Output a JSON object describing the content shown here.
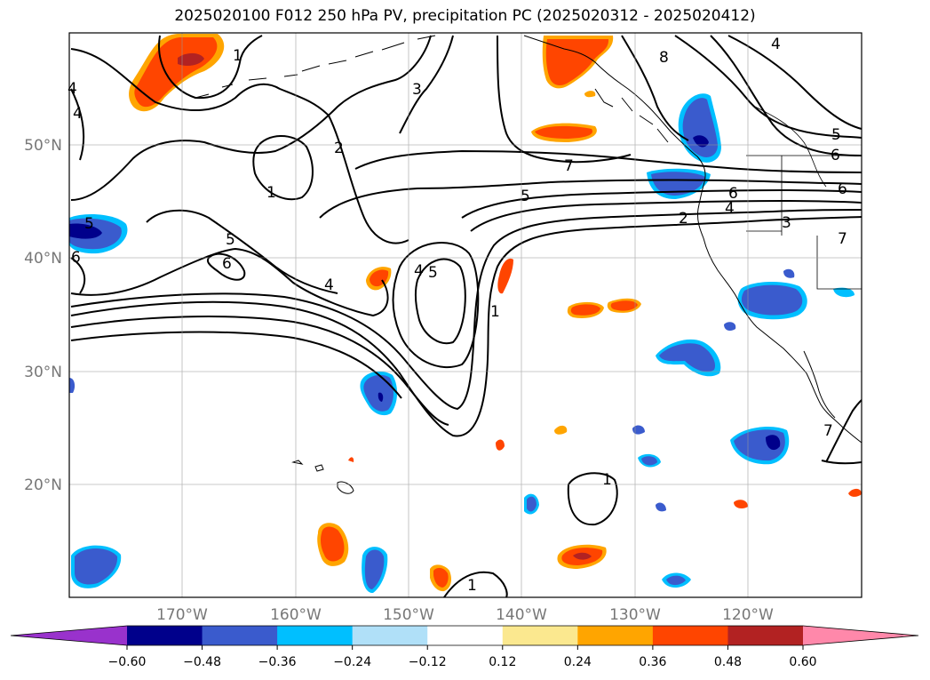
{
  "title": "2025020100 F012 250 hPa PV, precipitation PC (2025020312 - 2025020412)",
  "map": {
    "lat_labels": [
      "50°N",
      "40°N",
      "30°N",
      "20°N"
    ],
    "lon_labels": [
      "170°W",
      "160°W",
      "150°W",
      "140°W",
      "130°W",
      "120°W"
    ],
    "gridlines": true
  },
  "pv_contour_labels": [
    {
      "text": "1"
    },
    {
      "text": "2"
    },
    {
      "text": "3"
    },
    {
      "text": "4"
    },
    {
      "text": "5"
    },
    {
      "text": "6"
    },
    {
      "text": "1"
    },
    {
      "text": "5"
    },
    {
      "text": "6"
    },
    {
      "text": "4"
    },
    {
      "text": "4"
    },
    {
      "text": "5"
    },
    {
      "text": "1"
    },
    {
      "text": "5"
    },
    {
      "text": "6"
    },
    {
      "text": "7"
    },
    {
      "text": "8"
    },
    {
      "text": "4"
    },
    {
      "text": "5"
    },
    {
      "text": "6"
    },
    {
      "text": "6"
    },
    {
      "text": "4"
    },
    {
      "text": "3"
    },
    {
      "text": "2"
    },
    {
      "text": "1"
    },
    {
      "text": "1"
    },
    {
      "text": "7"
    },
    {
      "text": "7"
    },
    {
      "text": "4"
    }
  ],
  "colorbar": {
    "ticks": [
      "−0.60",
      "−0.48",
      "−0.36",
      "−0.24",
      "−0.12",
      "0.12",
      "0.24",
      "0.36",
      "0.48",
      "0.60"
    ],
    "colors": [
      "#9932cc",
      "#00008b",
      "#3a5bcd",
      "#00bfff",
      "#b0e0f8",
      "#ffffff",
      "#fbe88f",
      "#ffa500",
      "#ff4500",
      "#b22222",
      "#ff88aa"
    ],
    "extend": "both"
  }
}
